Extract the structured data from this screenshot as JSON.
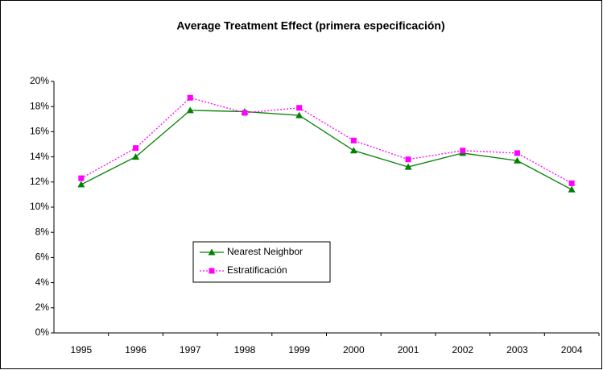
{
  "chart_data": {
    "type": "line",
    "title": "Average Treatment Effect (primera especificación)",
    "categories": [
      "1995",
      "1996",
      "1997",
      "1998",
      "1999",
      "2000",
      "2001",
      "2002",
      "2003",
      "2004"
    ],
    "series": [
      {
        "name": "Nearest Neighbor",
        "color": "#008000",
        "marker": "triangle",
        "dash": "solid",
        "values": [
          11.8,
          14.0,
          17.7,
          17.6,
          17.3,
          14.5,
          13.2,
          14.3,
          13.7,
          11.4
        ]
      },
      {
        "name": "Estratificación",
        "color": "#ff00ff",
        "marker": "square",
        "dash": "dotted",
        "values": [
          12.3,
          14.7,
          18.7,
          17.5,
          17.9,
          15.3,
          13.8,
          14.5,
          14.3,
          11.9
        ]
      }
    ],
    "ylim": [
      0,
      20
    ],
    "yticks": [
      {
        "value": 0,
        "label": "0%"
      },
      {
        "value": 2,
        "label": "2%"
      },
      {
        "value": 4,
        "label": "4%"
      },
      {
        "value": 6,
        "label": "6%"
      },
      {
        "value": 8,
        "label": "8%"
      },
      {
        "value": 10,
        "label": "10%"
      },
      {
        "value": 12,
        "label": "12%"
      },
      {
        "value": 14,
        "label": "14%"
      },
      {
        "value": 16,
        "label": "16%"
      },
      {
        "value": 18,
        "label": "18%"
      },
      {
        "value": 20,
        "label": "20%"
      }
    ],
    "grid": false
  }
}
